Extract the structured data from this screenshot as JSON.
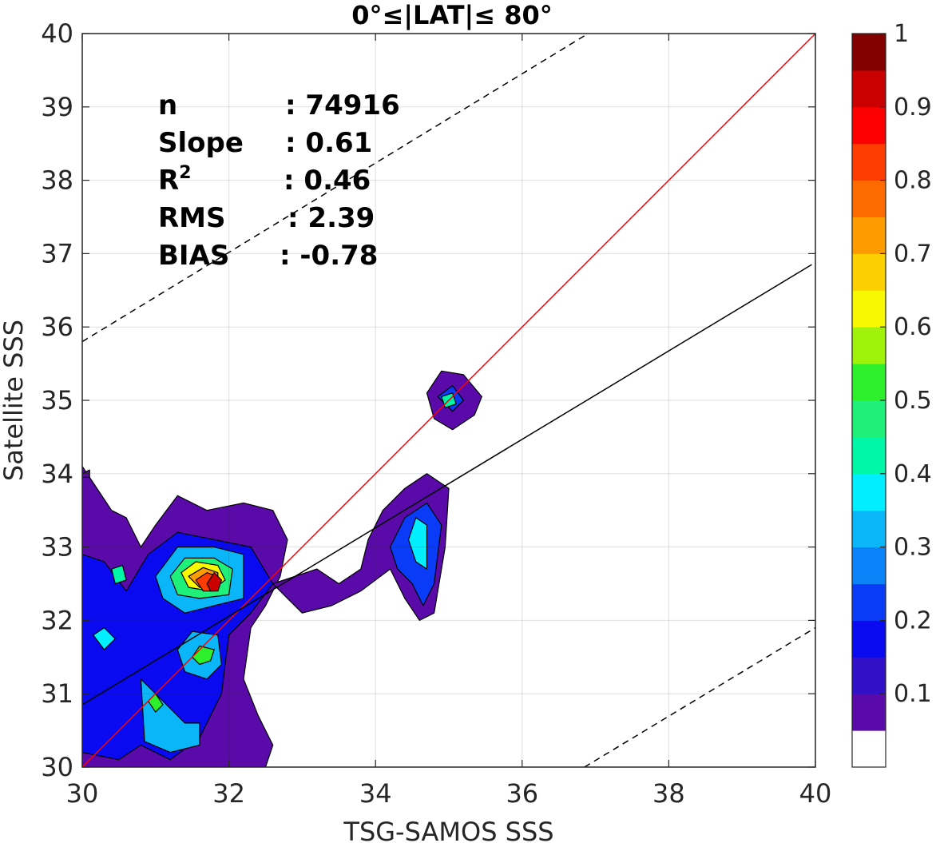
{
  "chart_data": {
    "type": "contour",
    "title": "0°≤|LAT|≤ 80°",
    "xlabel": "TSG-SAMOS SSS",
    "ylabel": "Satellite SSS",
    "xlim": [
      30,
      40
    ],
    "ylim": [
      30,
      40
    ],
    "xticks": [
      30,
      32,
      34,
      36,
      38,
      40
    ],
    "yticks": [
      30,
      31,
      32,
      33,
      34,
      35,
      36,
      37,
      38,
      39,
      40
    ],
    "grid": true,
    "stats": [
      {
        "key": "n",
        "sep": ": ",
        "value": "74916"
      },
      {
        "key": "Slope",
        "sep": ": ",
        "value": "0.61"
      },
      {
        "key": "R",
        "sup": "2",
        "sep": ": ",
        "value": "0.46"
      },
      {
        "key": "RMS",
        "sep": ": ",
        "value": "2.39"
      },
      {
        "key": "BIAS",
        "sep": ": ",
        "value": "-0.78"
      }
    ],
    "lines": [
      {
        "role": "one-to-one",
        "color": "#ff0000",
        "style": "solid",
        "points": [
          [
            30,
            30
          ],
          [
            40,
            40
          ]
        ]
      },
      {
        "role": "regression",
        "color": "#000000",
        "style": "solid",
        "points": [
          [
            30,
            30.85
          ],
          [
            39.95,
            36.85
          ]
        ]
      },
      {
        "role": "upper-bound",
        "color": "#000000",
        "style": "dashed",
        "points": [
          [
            30,
            35.8
          ],
          [
            36.9,
            40
          ]
        ]
      },
      {
        "role": "lower-bound",
        "color": "#000000",
        "style": "dashed",
        "points": [
          [
            36.85,
            30
          ],
          [
            40,
            31.9
          ]
        ]
      }
    ],
    "colorbar": {
      "range": [
        0,
        1
      ],
      "ticks": [
        "0.1",
        "0.2",
        "0.3",
        "0.4",
        "0.5",
        "0.6",
        "0.7",
        "0.8",
        "0.9",
        "1"
      ],
      "tick_values": [
        0.1,
        0.2,
        0.3,
        0.4,
        0.5,
        0.6,
        0.7,
        0.8,
        0.9,
        1.0
      ],
      "levels": [
        "#ffffff",
        "#5a0aa8",
        "#3210c8",
        "#0a0af0",
        "#0a3cf8",
        "#0a82f8",
        "#0ab6f8",
        "#00eeff",
        "#00f7a8",
        "#1ef07a",
        "#2cf02c",
        "#a0f20a",
        "#f8f800",
        "#fcd000",
        "#fc9c00",
        "#fc6a00",
        "#fc3c00",
        "#fc0000",
        "#c80000",
        "#820000"
      ]
    },
    "contours": [
      {
        "level": 1,
        "polygon": [
          [
            30,
            30
          ],
          [
            30,
            34.1
          ],
          [
            30.4,
            33.5
          ],
          [
            30.6,
            33.4
          ],
          [
            30.8,
            33.0
          ],
          [
            31.0,
            33.3
          ],
          [
            31.3,
            33.7
          ],
          [
            31.7,
            33.5
          ],
          [
            32.2,
            33.6
          ],
          [
            32.6,
            33.5
          ],
          [
            32.8,
            33.1
          ],
          [
            32.7,
            32.6
          ],
          [
            32.5,
            32.2
          ],
          [
            32.3,
            31.9
          ],
          [
            32.2,
            31.2
          ],
          [
            32.4,
            30.7
          ],
          [
            32.6,
            30.3
          ],
          [
            32.5,
            30
          ]
        ]
      },
      {
        "level": 1,
        "polygon": [
          [
            32.6,
            32.5
          ],
          [
            33.2,
            32.7
          ],
          [
            33.5,
            32.5
          ],
          [
            33.8,
            32.7
          ],
          [
            33.9,
            33.1
          ],
          [
            34.1,
            33.5
          ],
          [
            34.4,
            33.8
          ],
          [
            34.7,
            34.0
          ],
          [
            35.0,
            33.8
          ],
          [
            34.95,
            33.0
          ],
          [
            34.8,
            32.1
          ],
          [
            34.6,
            32.0
          ],
          [
            34.4,
            32.3
          ],
          [
            34.2,
            32.7
          ],
          [
            33.8,
            32.4
          ],
          [
            33.4,
            32.2
          ],
          [
            33.0,
            32.1
          ],
          [
            32.8,
            32.3
          ]
        ]
      },
      {
        "level": 1,
        "polygon": [
          [
            34.7,
            35.1
          ],
          [
            34.9,
            35.4
          ],
          [
            35.2,
            35.35
          ],
          [
            35.45,
            35.05
          ],
          [
            35.35,
            34.8
          ],
          [
            35.05,
            34.6
          ],
          [
            34.8,
            34.75
          ]
        ]
      },
      {
        "level": 1,
        "polygon": [
          [
            30,
            34.0
          ],
          [
            30.1,
            34.05
          ],
          [
            30.1,
            33.95
          ],
          [
            30,
            33.95
          ]
        ]
      },
      {
        "level": 3,
        "polygon": [
          [
            30,
            30.2
          ],
          [
            30,
            32.9
          ],
          [
            30.3,
            32.8
          ],
          [
            30.6,
            32.4
          ],
          [
            30.9,
            32.9
          ],
          [
            31.3,
            33.2
          ],
          [
            31.8,
            33.1
          ],
          [
            32.3,
            33.0
          ],
          [
            32.6,
            32.5
          ],
          [
            32.3,
            32.1
          ],
          [
            32.0,
            31.8
          ],
          [
            31.9,
            31.0
          ],
          [
            31.6,
            30.4
          ],
          [
            31.2,
            30.1
          ],
          [
            30.8,
            30.3
          ],
          [
            30.5,
            30.1
          ]
        ]
      },
      {
        "level": 4,
        "polygon": [
          [
            34.2,
            33.0
          ],
          [
            34.4,
            33.4
          ],
          [
            34.7,
            33.6
          ],
          [
            34.9,
            33.3
          ],
          [
            34.8,
            32.5
          ],
          [
            34.65,
            32.2
          ],
          [
            34.5,
            32.5
          ],
          [
            34.3,
            32.7
          ]
        ]
      },
      {
        "level": 4,
        "polygon": [
          [
            34.85,
            35.05
          ],
          [
            35.05,
            35.2
          ],
          [
            35.2,
            35.0
          ],
          [
            35.05,
            34.85
          ]
        ]
      },
      {
        "level": 6,
        "polygon": [
          [
            31.0,
            32.6
          ],
          [
            31.3,
            33.0
          ],
          [
            31.8,
            33.0
          ],
          [
            32.2,
            32.9
          ],
          [
            32.2,
            32.3
          ],
          [
            31.8,
            32.2
          ],
          [
            31.4,
            32.1
          ],
          [
            31.1,
            32.3
          ]
        ]
      },
      {
        "level": 6,
        "polygon": [
          [
            30.8,
            31.2
          ],
          [
            31.2,
            30.8
          ],
          [
            31.4,
            30.6
          ],
          [
            31.6,
            30.6
          ],
          [
            31.6,
            30.3
          ],
          [
            31.2,
            30.2
          ],
          [
            30.85,
            30.35
          ]
        ]
      },
      {
        "level": 6,
        "polygon": [
          [
            31.3,
            31.6
          ],
          [
            31.5,
            31.85
          ],
          [
            31.85,
            31.8
          ],
          [
            31.9,
            31.4
          ],
          [
            31.7,
            31.2
          ],
          [
            31.4,
            31.3
          ]
        ]
      },
      {
        "level": 7,
        "polygon": [
          [
            34.45,
            33.1
          ],
          [
            34.55,
            33.4
          ],
          [
            34.7,
            33.3
          ],
          [
            34.7,
            32.7
          ],
          [
            34.55,
            32.8
          ]
        ]
      },
      {
        "level": 7,
        "polygon": [
          [
            30.15,
            31.8
          ],
          [
            30.3,
            31.9
          ],
          [
            30.45,
            31.75
          ],
          [
            30.3,
            31.6
          ]
        ]
      },
      {
        "level": 8,
        "polygon": [
          [
            30.4,
            32.7
          ],
          [
            30.55,
            32.75
          ],
          [
            30.6,
            32.55
          ],
          [
            30.45,
            32.5
          ]
        ]
      },
      {
        "level": 8,
        "polygon": [
          [
            34.9,
            35.05
          ],
          [
            35.05,
            35.1
          ],
          [
            35.1,
            34.95
          ],
          [
            34.95,
            34.9
          ]
        ]
      },
      {
        "level": 9,
        "polygon": [
          [
            31.2,
            32.6
          ],
          [
            31.4,
            32.85
          ],
          [
            31.8,
            32.85
          ],
          [
            32.05,
            32.7
          ],
          [
            32.0,
            32.35
          ],
          [
            31.6,
            32.3
          ],
          [
            31.3,
            32.35
          ]
        ]
      },
      {
        "level": 10,
        "polygon": [
          [
            31.5,
            31.5
          ],
          [
            31.6,
            31.65
          ],
          [
            31.8,
            31.6
          ],
          [
            31.75,
            31.45
          ],
          [
            31.6,
            31.4
          ]
        ]
      },
      {
        "level": 10,
        "polygon": [
          [
            30.9,
            30.9
          ],
          [
            31.0,
            31.0
          ],
          [
            31.1,
            30.85
          ],
          [
            31.0,
            30.75
          ]
        ]
      },
      {
        "level": 12,
        "polygon": [
          [
            31.35,
            32.65
          ],
          [
            31.55,
            32.8
          ],
          [
            31.85,
            32.75
          ],
          [
            31.95,
            32.55
          ],
          [
            31.75,
            32.4
          ],
          [
            31.45,
            32.45
          ]
        ]
      },
      {
        "level": 14,
        "polygon": [
          [
            31.45,
            32.6
          ],
          [
            31.65,
            32.72
          ],
          [
            31.85,
            32.65
          ],
          [
            31.85,
            32.45
          ],
          [
            31.6,
            32.45
          ]
        ]
      },
      {
        "level": 16,
        "polygon": [
          [
            31.55,
            32.55
          ],
          [
            31.7,
            32.65
          ],
          [
            31.85,
            32.6
          ],
          [
            31.8,
            32.4
          ],
          [
            31.65,
            32.4
          ]
        ]
      },
      {
        "level": 18,
        "polygon": [
          [
            31.7,
            32.5
          ],
          [
            31.8,
            32.65
          ],
          [
            31.9,
            32.55
          ],
          [
            31.85,
            32.4
          ],
          [
            31.75,
            32.4
          ]
        ]
      }
    ]
  }
}
